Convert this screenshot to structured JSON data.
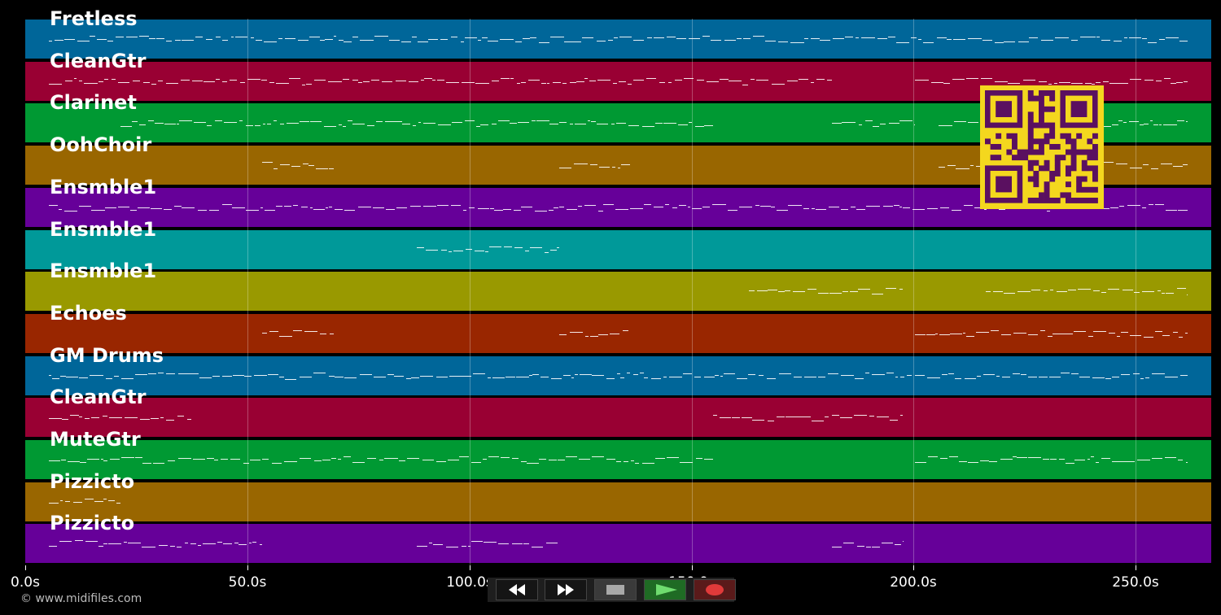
{
  "tracks": [
    {
      "name": "Fretless",
      "color": "#006699"
    },
    {
      "name": "CleanGtr",
      "color": "#990033"
    },
    {
      "name": "Clarinet",
      "color": "#009933"
    },
    {
      "name": "OohChoir",
      "color": "#996600"
    },
    {
      "name": "Ensmble1",
      "color": "#660099"
    },
    {
      "name": "Ensmble1",
      "color": "#009999"
    },
    {
      "name": "Ensmble1",
      "color": "#999900"
    },
    {
      "name": "Echoes",
      "color": "#992600"
    },
    {
      "name": "GM Drums",
      "color": "#006699"
    },
    {
      "name": "CleanGtr",
      "color": "#990033"
    },
    {
      "name": "MuteGtr",
      "color": "#009933"
    },
    {
      "name": "Pizzicto",
      "color": "#996600"
    },
    {
      "name": "Pizzicto",
      "color": "#660099"
    }
  ],
  "timeline": {
    "ticks": [
      "0.0s",
      "50.0s",
      "100.0s",
      "150.0s",
      "200.0s",
      "250.0s"
    ]
  },
  "footer": {
    "copyright": "© www.midifiles.com"
  },
  "transport": {
    "buttons": [
      {
        "name": "rewind-button",
        "icon": "rewind-icon",
        "bg": "#151515",
        "fg": "#ffffff"
      },
      {
        "name": "fast-forward-button",
        "icon": "fast-forward-icon",
        "bg": "#151515",
        "fg": "#ffffff"
      },
      {
        "name": "stop-button",
        "icon": "stop-icon",
        "bg": "#3a3a3a",
        "fg": "#a8a8a8"
      },
      {
        "name": "play-button",
        "icon": "play-icon",
        "bg": "#1f6b24",
        "fg": "#6fdc6f"
      },
      {
        "name": "record-button",
        "icon": "record-icon",
        "bg": "#5a1a1a",
        "fg": "#e03a3a"
      }
    ]
  },
  "qr": {
    "fg": "#5a1060",
    "bg": "#f4d71e"
  }
}
